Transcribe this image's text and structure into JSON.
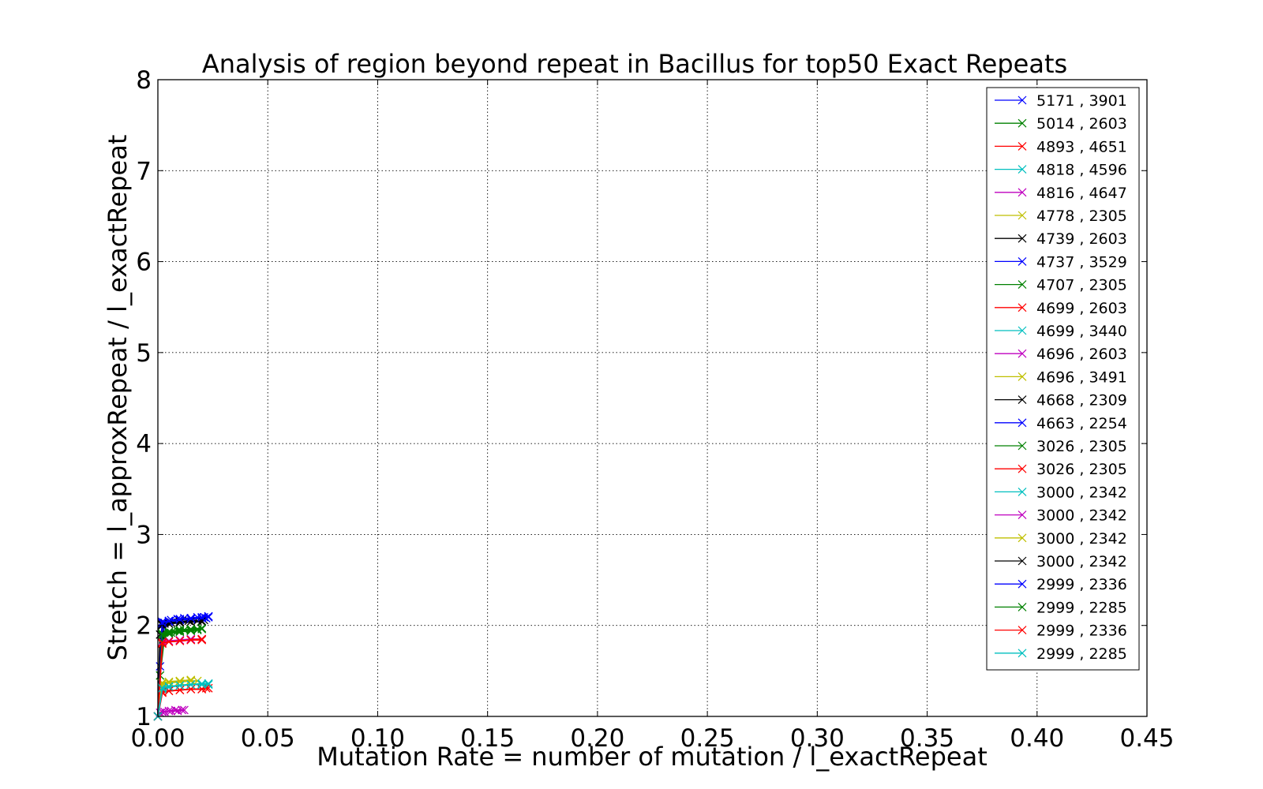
{
  "chart_data": {
    "type": "line",
    "title": "Analysis of region beyond repeat in Bacillus for top50 Exact Repeats",
    "xlabel": "Mutation Rate = number of mutation / l_exactRepeat",
    "ylabel": "Stretch =  l_approxRepeat / l_exactRepeat",
    "xlim": [
      0.0,
      0.45
    ],
    "ylim": [
      1,
      8
    ],
    "xticks": [
      "0.00",
      "0.05",
      "0.10",
      "0.15",
      "0.20",
      "0.25",
      "0.30",
      "0.35",
      "0.40",
      "0.45"
    ],
    "yticks": [
      "1",
      "2",
      "3",
      "4",
      "5",
      "6",
      "7",
      "8"
    ],
    "grid": true,
    "legend_position": "top-right",
    "marker": "x",
    "series": [
      {
        "name": "5171 , 3901",
        "color": "#0000ff",
        "x": [
          0,
          0.001,
          0.003,
          0.006,
          0.009,
          0.012,
          0.015,
          0.018,
          0.021,
          0.023
        ],
        "y": [
          1.0,
          1.55,
          2.03,
          2.06,
          2.07,
          2.08,
          2.08,
          2.09,
          2.09,
          2.1
        ]
      },
      {
        "name": "5014 , 2603",
        "color": "#008000",
        "x": [
          0,
          0.001,
          0.003,
          0.006,
          0.009,
          0.012,
          0.015,
          0.018,
          0.02
        ],
        "y": [
          1.0,
          1.45,
          1.88,
          1.92,
          1.94,
          1.95,
          1.96,
          1.96,
          1.97
        ]
      },
      {
        "name": "4893 , 4651",
        "color": "#ff0000",
        "x": [
          0,
          0.002,
          0.005,
          0.01,
          0.015,
          0.02,
          0.023
        ],
        "y": [
          1.0,
          1.26,
          1.28,
          1.29,
          1.3,
          1.3,
          1.31
        ]
      },
      {
        "name": "4818 , 4596",
        "color": "#00bfbf",
        "x": [
          0,
          0.002,
          0.005,
          0.01,
          0.015,
          0.02,
          0.023
        ],
        "y": [
          1.0,
          1.3,
          1.32,
          1.34,
          1.35,
          1.35,
          1.36
        ]
      },
      {
        "name": "4816 , 4647",
        "color": "#bf00bf",
        "x": [
          0,
          0.001,
          0.003,
          0.006,
          0.009,
          0.012
        ],
        "y": [
          1.0,
          1.04,
          1.05,
          1.06,
          1.06,
          1.07
        ]
      },
      {
        "name": "4778 , 2305",
        "color": "#bfbf00",
        "x": [
          0,
          0.002,
          0.005,
          0.01,
          0.015,
          0.018
        ],
        "y": [
          1.0,
          1.36,
          1.37,
          1.38,
          1.39,
          1.39
        ]
      },
      {
        "name": "4739 , 2603",
        "color": "#000000",
        "x": [
          0,
          0.001,
          0.003,
          0.006,
          0.01,
          0.014,
          0.018,
          0.021
        ],
        "y": [
          1.0,
          1.9,
          2.02,
          2.03,
          2.04,
          2.05,
          2.05,
          2.06
        ]
      },
      {
        "name": "4737 , 3529",
        "color": "#0000ff",
        "x": [
          0,
          0.002,
          0.005,
          0.01,
          0.015,
          0.02,
          0.022
        ],
        "y": [
          1.0,
          2.02,
          2.04,
          2.06,
          2.07,
          2.08,
          2.08
        ]
      },
      {
        "name": "4707 , 2305",
        "color": "#008000",
        "x": [
          0,
          0.002,
          0.005,
          0.01,
          0.015,
          0.02
        ],
        "y": [
          1.0,
          1.9,
          1.92,
          1.94,
          1.95,
          1.96
        ]
      },
      {
        "name": "4699 , 2603",
        "color": "#ff0000",
        "x": [
          0,
          0.002,
          0.005,
          0.01,
          0.015,
          0.02
        ],
        "y": [
          1.0,
          1.8,
          1.82,
          1.83,
          1.84,
          1.84
        ]
      },
      {
        "name": "4699 , 3440",
        "color": "#00bfbf",
        "x": [
          0,
          0.002,
          0.005,
          0.01,
          0.015,
          0.02,
          0.023
        ],
        "y": [
          1.0,
          1.31,
          1.33,
          1.34,
          1.35,
          1.35,
          1.35
        ]
      },
      {
        "name": "4696 , 2603",
        "color": "#bf00bf",
        "x": [
          0,
          0.002,
          0.005,
          0.01,
          0.015,
          0.02
        ],
        "y": [
          1.0,
          1.82,
          1.83,
          1.84,
          1.85,
          1.85
        ]
      },
      {
        "name": "4696 , 3491",
        "color": "#bfbf00",
        "x": [
          0,
          0.002,
          0.005,
          0.01,
          0.015
        ],
        "y": [
          1.0,
          1.36,
          1.38,
          1.39,
          1.4
        ]
      },
      {
        "name": "4668 , 2309",
        "color": "#000000",
        "x": [
          0,
          0.002,
          0.005,
          0.01,
          0.015,
          0.02
        ],
        "y": [
          1.0,
          2.01,
          2.02,
          2.03,
          2.04,
          2.04
        ]
      },
      {
        "name": "4663 , 2254",
        "color": "#0000ff",
        "x": [
          0,
          0.002,
          0.005,
          0.01,
          0.015,
          0.02,
          0.023
        ],
        "y": [
          1.0,
          2.04,
          2.05,
          2.06,
          2.07,
          2.08,
          2.09
        ]
      },
      {
        "name": "3026 , 2305",
        "color": "#008000",
        "x": [
          0,
          0.002,
          0.005,
          0.01,
          0.015,
          0.018
        ],
        "y": [
          1.0,
          1.89,
          1.91,
          1.93,
          1.94,
          1.95
        ]
      },
      {
        "name": "3026 , 2305",
        "color": "#ff0000",
        "x": [
          0,
          0.002,
          0.005,
          0.01,
          0.015,
          0.02,
          0.022
        ],
        "y": [
          1.0,
          1.27,
          1.28,
          1.29,
          1.3,
          1.3,
          1.31
        ]
      },
      {
        "name": "3000 , 2342",
        "color": "#00bfbf",
        "x": [
          0,
          0.002,
          0.005,
          0.01,
          0.015,
          0.02,
          0.023
        ],
        "y": [
          1.0,
          1.32,
          1.33,
          1.34,
          1.35,
          1.36,
          1.36
        ]
      },
      {
        "name": "3000 , 2342",
        "color": "#bf00bf",
        "x": [
          0,
          0.002,
          0.005,
          0.008,
          0.011
        ],
        "y": [
          1.0,
          1.05,
          1.06,
          1.07,
          1.07
        ]
      },
      {
        "name": "3000 , 2342",
        "color": "#bfbf00",
        "x": [
          0,
          0.002,
          0.005,
          0.01,
          0.015
        ],
        "y": [
          1.0,
          1.37,
          1.38,
          1.39,
          1.4
        ]
      },
      {
        "name": "3000 , 2342",
        "color": "#000000",
        "x": [
          0,
          0.002,
          0.005,
          0.01,
          0.015,
          0.02
        ],
        "y": [
          1.0,
          2.0,
          2.02,
          2.03,
          2.04,
          2.05
        ]
      },
      {
        "name": "2999 , 2336",
        "color": "#0000ff",
        "x": [
          0,
          0.002,
          0.005,
          0.01,
          0.015,
          0.02,
          0.023
        ],
        "y": [
          1.0,
          2.03,
          2.05,
          2.07,
          2.08,
          2.09,
          2.1
        ]
      },
      {
        "name": "2999 , 2285",
        "color": "#008000",
        "x": [
          0,
          0.002,
          0.005,
          0.01,
          0.015,
          0.02
        ],
        "y": [
          1.0,
          1.91,
          1.93,
          1.95,
          1.96,
          1.97
        ]
      },
      {
        "name": "2999 , 2336",
        "color": "#ff0000",
        "x": [
          0,
          0.002,
          0.005,
          0.01,
          0.015,
          0.02
        ],
        "y": [
          1.0,
          1.81,
          1.82,
          1.83,
          1.84,
          1.85
        ]
      },
      {
        "name": "2999 , 2285",
        "color": "#00bfbf",
        "x": [
          0,
          0.002,
          0.005,
          0.01,
          0.015,
          0.02,
          0.023
        ],
        "y": [
          1.0,
          1.31,
          1.33,
          1.34,
          1.35,
          1.35,
          1.36
        ]
      }
    ]
  }
}
